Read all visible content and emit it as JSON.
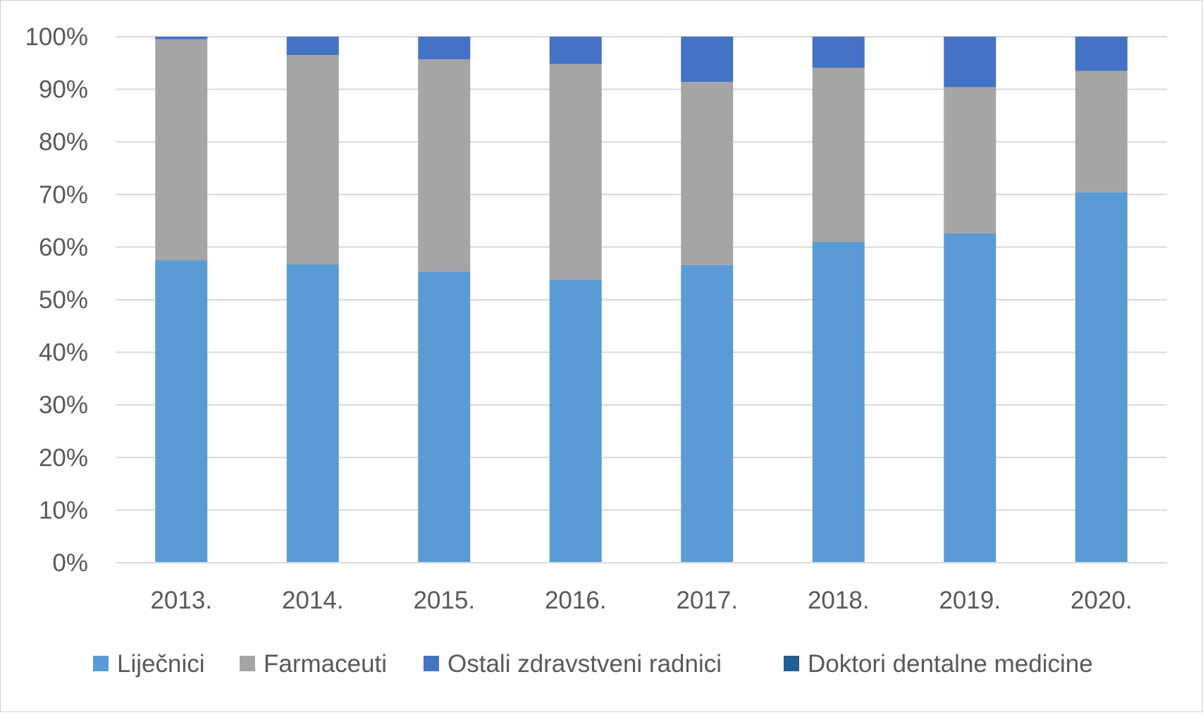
{
  "chart_data": {
    "type": "bar",
    "stacked": true,
    "percent_stacked": true,
    "title": "",
    "xlabel": "",
    "ylabel": "",
    "categories": [
      "2013.",
      "2014.",
      "2015.",
      "2016.",
      "2017.",
      "2018.",
      "2019.",
      "2020."
    ],
    "ylim": [
      0,
      100
    ],
    "y_ticks": [
      "0%",
      "10%",
      "20%",
      "30%",
      "40%",
      "50%",
      "60%",
      "70%",
      "80%",
      "90%",
      "100%"
    ],
    "grid": true,
    "legend_position": "bottom",
    "series": [
      {
        "name": "Liječnici",
        "color": "#5b9bd5",
        "values": [
          57.5,
          56.7,
          55.3,
          53.8,
          56.6,
          61.0,
          62.6,
          70.4
        ]
      },
      {
        "name": "Farmaceuti",
        "color": "#a5a5a5",
        "values": [
          42.0,
          39.8,
          40.4,
          41.0,
          34.8,
          33.1,
          27.8,
          23.1
        ]
      },
      {
        "name": "Ostali zdravstveni radnici",
        "color": "#4472c4",
        "values": [
          0.5,
          3.5,
          4.3,
          5.2,
          8.6,
          5.9,
          9.6,
          6.5
        ]
      },
      {
        "name": "Doktori dentalne medicine",
        "color": "#255e91",
        "values": [
          0,
          0,
          0,
          0,
          0,
          0,
          0,
          0
        ]
      }
    ]
  }
}
